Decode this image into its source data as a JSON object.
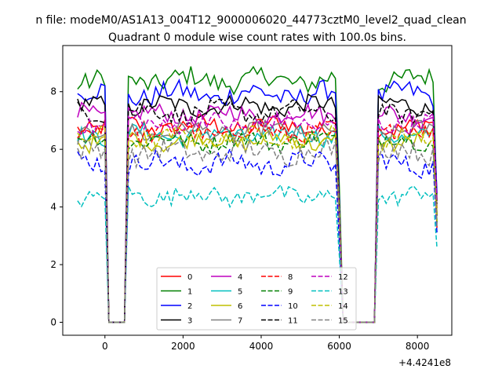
{
  "figure": {
    "suptitle": "n file: modeM0/AS1A13_004T12_9000006020_44773cztM0_level2_quad_clean",
    "title": "Quadrant 0 module wise count rates with 100.0s bins.",
    "offset_label": "+4.4241e8"
  },
  "chart_data": {
    "type": "line",
    "title": "Quadrant 0 module wise count rates with 100.0s bins.",
    "xlabel": "",
    "ylabel": "",
    "x_offset": 442410000,
    "xlim": [
      -1080,
      8880
    ],
    "ylim": [
      -0.45,
      9.6
    ],
    "xticks": [
      0,
      2000,
      4000,
      6000,
      8000
    ],
    "yticks": [
      0,
      2,
      4,
      6,
      8
    ],
    "grid": false,
    "legend": {
      "placement": "lower center",
      "ncol": 4
    },
    "segments": [
      {
        "x_start": -700,
        "x_end": 0,
        "kind": "data"
      },
      {
        "x_start": 100,
        "x_end": 500,
        "kind": "zero"
      },
      {
        "x_start": 600,
        "x_end": 6000,
        "kind": "data"
      },
      {
        "x_start": 6100,
        "x_end": 6900,
        "kind": "zero"
      },
      {
        "x_start": 7000,
        "x_end": 8500,
        "kind": "data"
      }
    ],
    "series": [
      {
        "name": "0",
        "color": "#ff0000",
        "dash": "solid",
        "level": 6.8,
        "noise": 0.3
      },
      {
        "name": "1",
        "color": "#008000",
        "dash": "solid",
        "level": 8.4,
        "noise": 0.35
      },
      {
        "name": "2",
        "color": "#0000ff",
        "dash": "solid",
        "level": 7.9,
        "noise": 0.35
      },
      {
        "name": "3",
        "color": "#000000",
        "dash": "solid",
        "level": 7.5,
        "noise": 0.3
      },
      {
        "name": "4",
        "color": "#bf00bf",
        "dash": "solid",
        "level": 7.2,
        "noise": 0.3
      },
      {
        "name": "5",
        "color": "#00bfbf",
        "dash": "solid",
        "level": 6.5,
        "noise": 0.3
      },
      {
        "name": "6",
        "color": "#bfbf00",
        "dash": "solid",
        "level": 6.3,
        "noise": 0.3
      },
      {
        "name": "7",
        "color": "#808080",
        "dash": "solid",
        "level": 6.6,
        "noise": 0.3
      },
      {
        "name": "8",
        "color": "#ff0000",
        "dash": "dashed",
        "level": 6.6,
        "noise": 0.3
      },
      {
        "name": "9",
        "color": "#008000",
        "dash": "dashed",
        "level": 6.3,
        "noise": 0.3
      },
      {
        "name": "10",
        "color": "#0000ff",
        "dash": "dashed",
        "level": 5.5,
        "noise": 0.35
      },
      {
        "name": "11",
        "color": "#000000",
        "dash": "dashed",
        "level": 7.3,
        "noise": 0.3
      },
      {
        "name": "12",
        "color": "#bf00bf",
        "dash": "dashed",
        "level": 6.9,
        "noise": 0.3
      },
      {
        "name": "13",
        "color": "#00bfbf",
        "dash": "dashed",
        "level": 4.4,
        "noise": 0.3
      },
      {
        "name": "14",
        "color": "#bfbf00",
        "dash": "dashed",
        "level": 6.4,
        "noise": 0.3
      },
      {
        "name": "15",
        "color": "#808080",
        "dash": "dashed",
        "level": 5.9,
        "noise": 0.35
      }
    ]
  }
}
